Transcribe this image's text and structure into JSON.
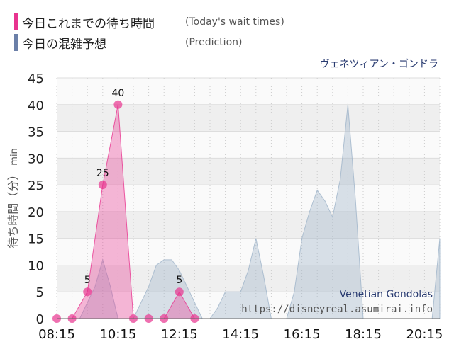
{
  "legend": [
    {
      "jp": "今日これまでの待ち時間",
      "en": "(Today's wait times)",
      "color": "#e8338f"
    },
    {
      "jp": "今日の混雑予想",
      "en": "(Prediction)",
      "color": "#6b7fa8"
    }
  ],
  "attraction_jp": "ヴェネツィアン・ゴンドラ",
  "watermark": {
    "name": "Venetian Gondolas",
    "url": "https://disneyreal.asumirai.info"
  },
  "chart_data": {
    "type": "area",
    "ylabel": "待ち時間（分）",
    "ylabel_unit": "min",
    "ylim": [
      0,
      45
    ],
    "yticks": [
      "0",
      "5",
      "10",
      "15",
      "20",
      "25",
      "30",
      "35",
      "40",
      "45"
    ],
    "xlim": [
      "08:15",
      "20:45"
    ],
    "xticks": [
      "08:15",
      "10:15",
      "12:15",
      "14:15",
      "16:15",
      "18:15",
      "20:15"
    ],
    "grid": true,
    "series": [
      {
        "color": "#e8338f",
        "x": [
          "08:15",
          "08:45",
          "09:15",
          "09:45",
          "10:15",
          "10:45",
          "11:15",
          "11:45",
          "12:15",
          "12:45"
        ],
        "y": [
          0,
          0,
          5,
          25,
          40,
          0,
          0,
          0,
          5,
          0
        ],
        "labels": [
          "",
          "",
          "5",
          "25",
          "40",
          "",
          "",
          "",
          "5",
          ""
        ]
      },
      {
        "color": "#9fb4c9",
        "x": [
          "08:15",
          "08:30",
          "08:45",
          "09:00",
          "09:15",
          "09:30",
          "09:45",
          "10:00",
          "10:15",
          "10:30",
          "10:45",
          "11:00",
          "11:15",
          "11:30",
          "11:45",
          "12:00",
          "12:15",
          "12:30",
          "12:45",
          "13:00",
          "13:15",
          "13:30",
          "13:45",
          "14:00",
          "14:15",
          "14:30",
          "14:45",
          "15:00",
          "15:15",
          "15:30",
          "15:45",
          "16:00",
          "16:15",
          "16:30",
          "16:45",
          "17:00",
          "17:15",
          "17:30",
          "17:45",
          "18:00",
          "18:15",
          "18:30",
          "18:45",
          "19:00",
          "19:15",
          "19:30",
          "19:45",
          "20:00",
          "20:15",
          "20:30",
          "20:45"
        ],
        "y": [
          0,
          0,
          0,
          0,
          3,
          6,
          11,
          6,
          0,
          0,
          0,
          3,
          6,
          10,
          11,
          11,
          9,
          6,
          3,
          0,
          0,
          2,
          5,
          5,
          5,
          9,
          15,
          8,
          0,
          0,
          0,
          5,
          15,
          20,
          24,
          22,
          19,
          26,
          40,
          22,
          0,
          0,
          0,
          0,
          0,
          0,
          0,
          0,
          0,
          0,
          15
        ]
      }
    ]
  }
}
